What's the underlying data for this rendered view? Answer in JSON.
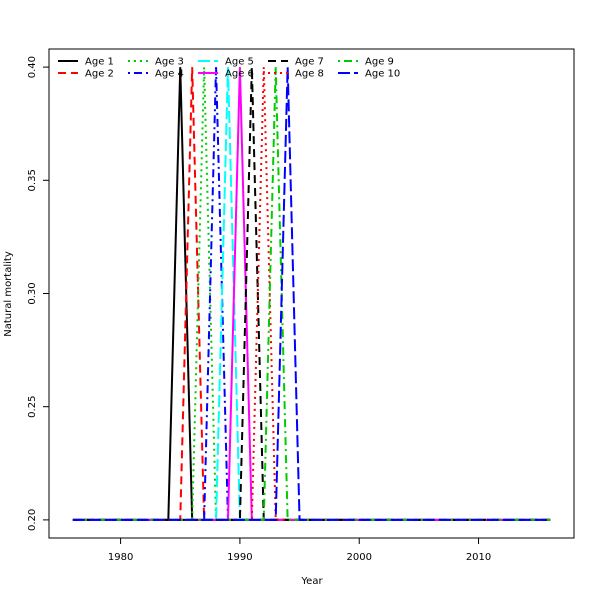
{
  "chart_data": {
    "type": "line",
    "title": "",
    "xlabel": "Year",
    "ylabel": "Natural mortality",
    "xlim": [
      1974,
      2018
    ],
    "ylim": [
      0.192,
      0.408
    ],
    "x_ticks": [
      1980,
      1990,
      2000,
      2010
    ],
    "y_ticks": [
      0.2,
      0.25,
      0.3,
      0.35,
      0.4
    ],
    "y_tick_labels": [
      "0.20",
      "0.25",
      "0.30",
      "0.35",
      "0.40"
    ],
    "grid": false,
    "legend_position": "top-left",
    "x_start": 1976,
    "x_end": 2016,
    "base_value": 0.2,
    "peak_value": 0.4,
    "series": [
      {
        "name": "Age 1",
        "peak_year": 1985,
        "color": "#000000",
        "dash": "solid"
      },
      {
        "name": "Age 2",
        "peak_year": 1986,
        "color": "#ff0000",
        "dash": "dashed"
      },
      {
        "name": "Age 3",
        "peak_year": 1987,
        "color": "#00cd00",
        "dash": "dotted"
      },
      {
        "name": "Age 4",
        "peak_year": 1988,
        "color": "#0000ff",
        "dash": "dotdash"
      },
      {
        "name": "Age 5",
        "peak_year": 1989,
        "color": "#00ffff",
        "dash": "longdash"
      },
      {
        "name": "Age 6",
        "peak_year": 1990,
        "color": "#ff00ff",
        "dash": "solid"
      },
      {
        "name": "Age 7",
        "peak_year": 1991,
        "color": "#000000",
        "dash": "dashed"
      },
      {
        "name": "Age 8",
        "peak_year": 1992,
        "color": "#ff0000",
        "dash": "dotted"
      },
      {
        "name": "Age 9",
        "peak_year": 1993,
        "color": "#00cd00",
        "dash": "dotdash"
      },
      {
        "name": "Age 10",
        "peak_year": 1994,
        "color": "#0000ff",
        "dash": "longdash"
      }
    ]
  }
}
